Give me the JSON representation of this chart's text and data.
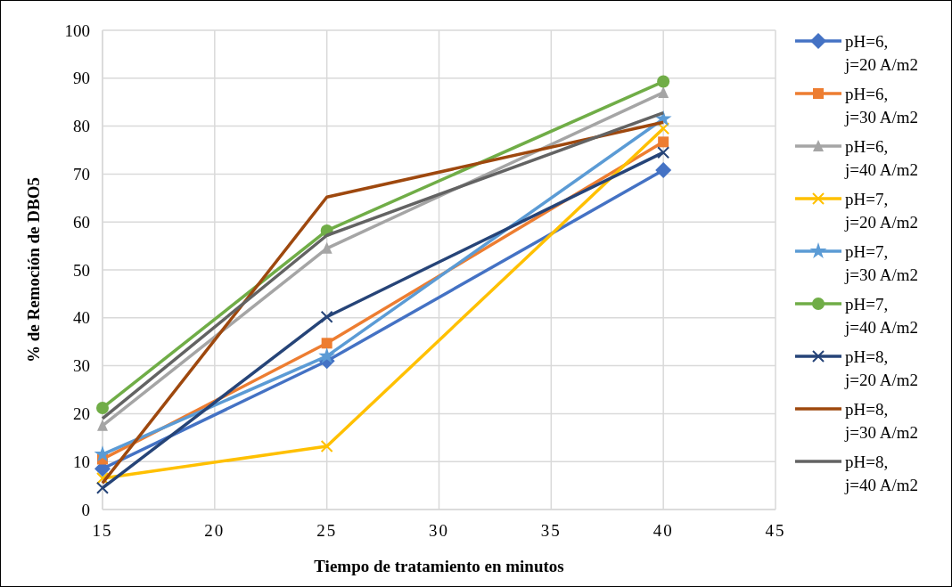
{
  "chart_data": {
    "type": "line",
    "xlabel": "Tiempo de tratamiento en minutos",
    "ylabel": "% de Remoción de DBO5",
    "x": [
      15,
      25,
      40
    ],
    "xlim": [
      15,
      45
    ],
    "xticks": [
      15,
      20,
      25,
      30,
      35,
      40,
      45
    ],
    "ylim": [
      0,
      100
    ],
    "yticks": [
      0,
      10,
      20,
      30,
      40,
      50,
      60,
      70,
      80,
      90,
      100
    ],
    "grid": true,
    "legend": "right",
    "line_style": "solid",
    "series": [
      {
        "name": "pH=6, j=20 A/m2",
        "color": "#4472c4",
        "marker": "diamond",
        "values": [
          8.5,
          31,
          70.8
        ]
      },
      {
        "name": "pH=6, j=30 A/m2",
        "color": "#ed7d31",
        "marker": "square",
        "values": [
          10.5,
          34.7,
          76.7
        ]
      },
      {
        "name": "pH=6, j=40 A/m2",
        "color": "#a5a5a5",
        "marker": "triangle",
        "values": [
          17.5,
          54.5,
          87
        ]
      },
      {
        "name": "pH=7, j=20 A/m2",
        "color": "#ffc000",
        "marker": "cross",
        "values": [
          6.5,
          13.2,
          79.5
        ]
      },
      {
        "name": "pH=7, j=30 A/m2",
        "color": "#5b9bd5",
        "marker": "star",
        "values": [
          11.5,
          32,
          81.5
        ]
      },
      {
        "name": "pH=7, j=40 A/m2",
        "color": "#70ad47",
        "marker": "circle",
        "values": [
          21.2,
          58.2,
          89.3
        ]
      },
      {
        "name": "pH=8, j=20 A/m2",
        "color": "#264478",
        "marker": "cross",
        "values": [
          4.5,
          40.2,
          74.5
        ]
      },
      {
        "name": "pH=8, j=30 A/m2",
        "color": "#9e480e",
        "marker": "none",
        "values": [
          5.5,
          65.2,
          80.8
        ]
      },
      {
        "name": "pH=8, j=40 A/m2",
        "color": "#636363",
        "marker": "none",
        "values": [
          19,
          57.2,
          82.8
        ]
      }
    ]
  }
}
